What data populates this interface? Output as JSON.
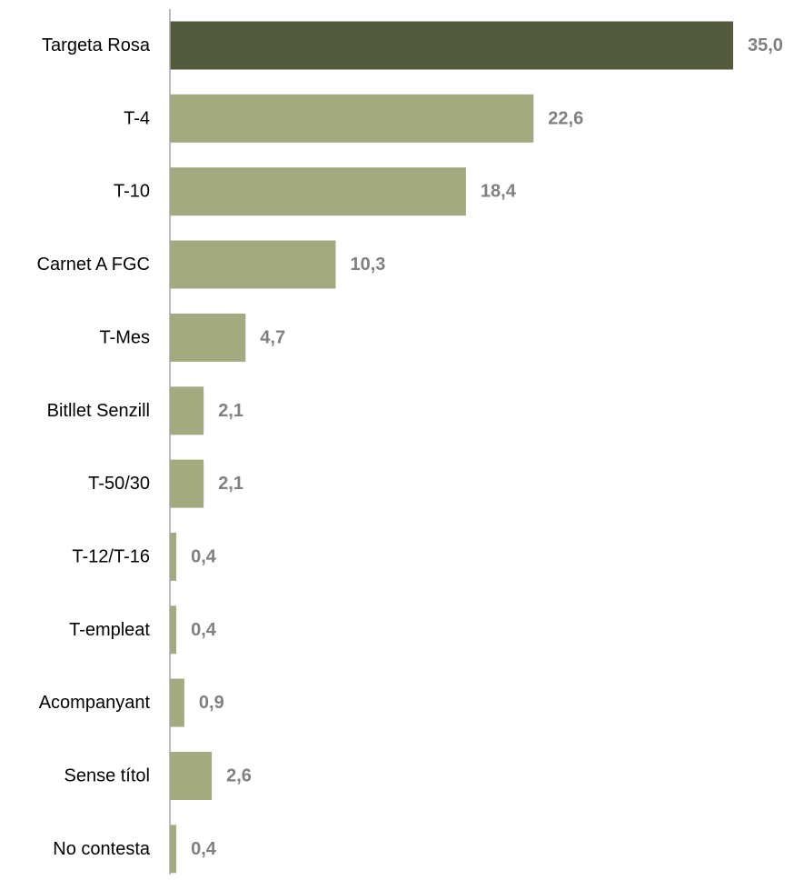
{
  "chart_data": {
    "type": "bar",
    "orientation": "horizontal",
    "categories": [
      "Targeta Rosa",
      "T-4",
      "T-10",
      "Carnet A FGC",
      "T-Mes",
      "Bitllet Senzill",
      "T-50/30",
      "T-12/T-16",
      "T-empleat",
      "Acompanyant",
      "Sense títol",
      "No contesta"
    ],
    "values": [
      35.0,
      22.6,
      18.4,
      10.3,
      4.7,
      2.1,
      2.1,
      0.4,
      0.4,
      0.9,
      2.6,
      0.4
    ],
    "value_labels": [
      "35,0",
      "22,6",
      "18,4",
      "10,3",
      "4,7",
      "2,1",
      "2,1",
      "0,4",
      "0,4",
      "0,9",
      "2,6",
      "0,4"
    ],
    "highlight_index": 0,
    "xlim": [
      0,
      35.0
    ],
    "grid": false,
    "legend": "none",
    "colors": {
      "highlight_bar": "#545a3c",
      "bar": "#a4aa80",
      "value_label": "#808080",
      "axis": "#a6a6a6"
    }
  }
}
